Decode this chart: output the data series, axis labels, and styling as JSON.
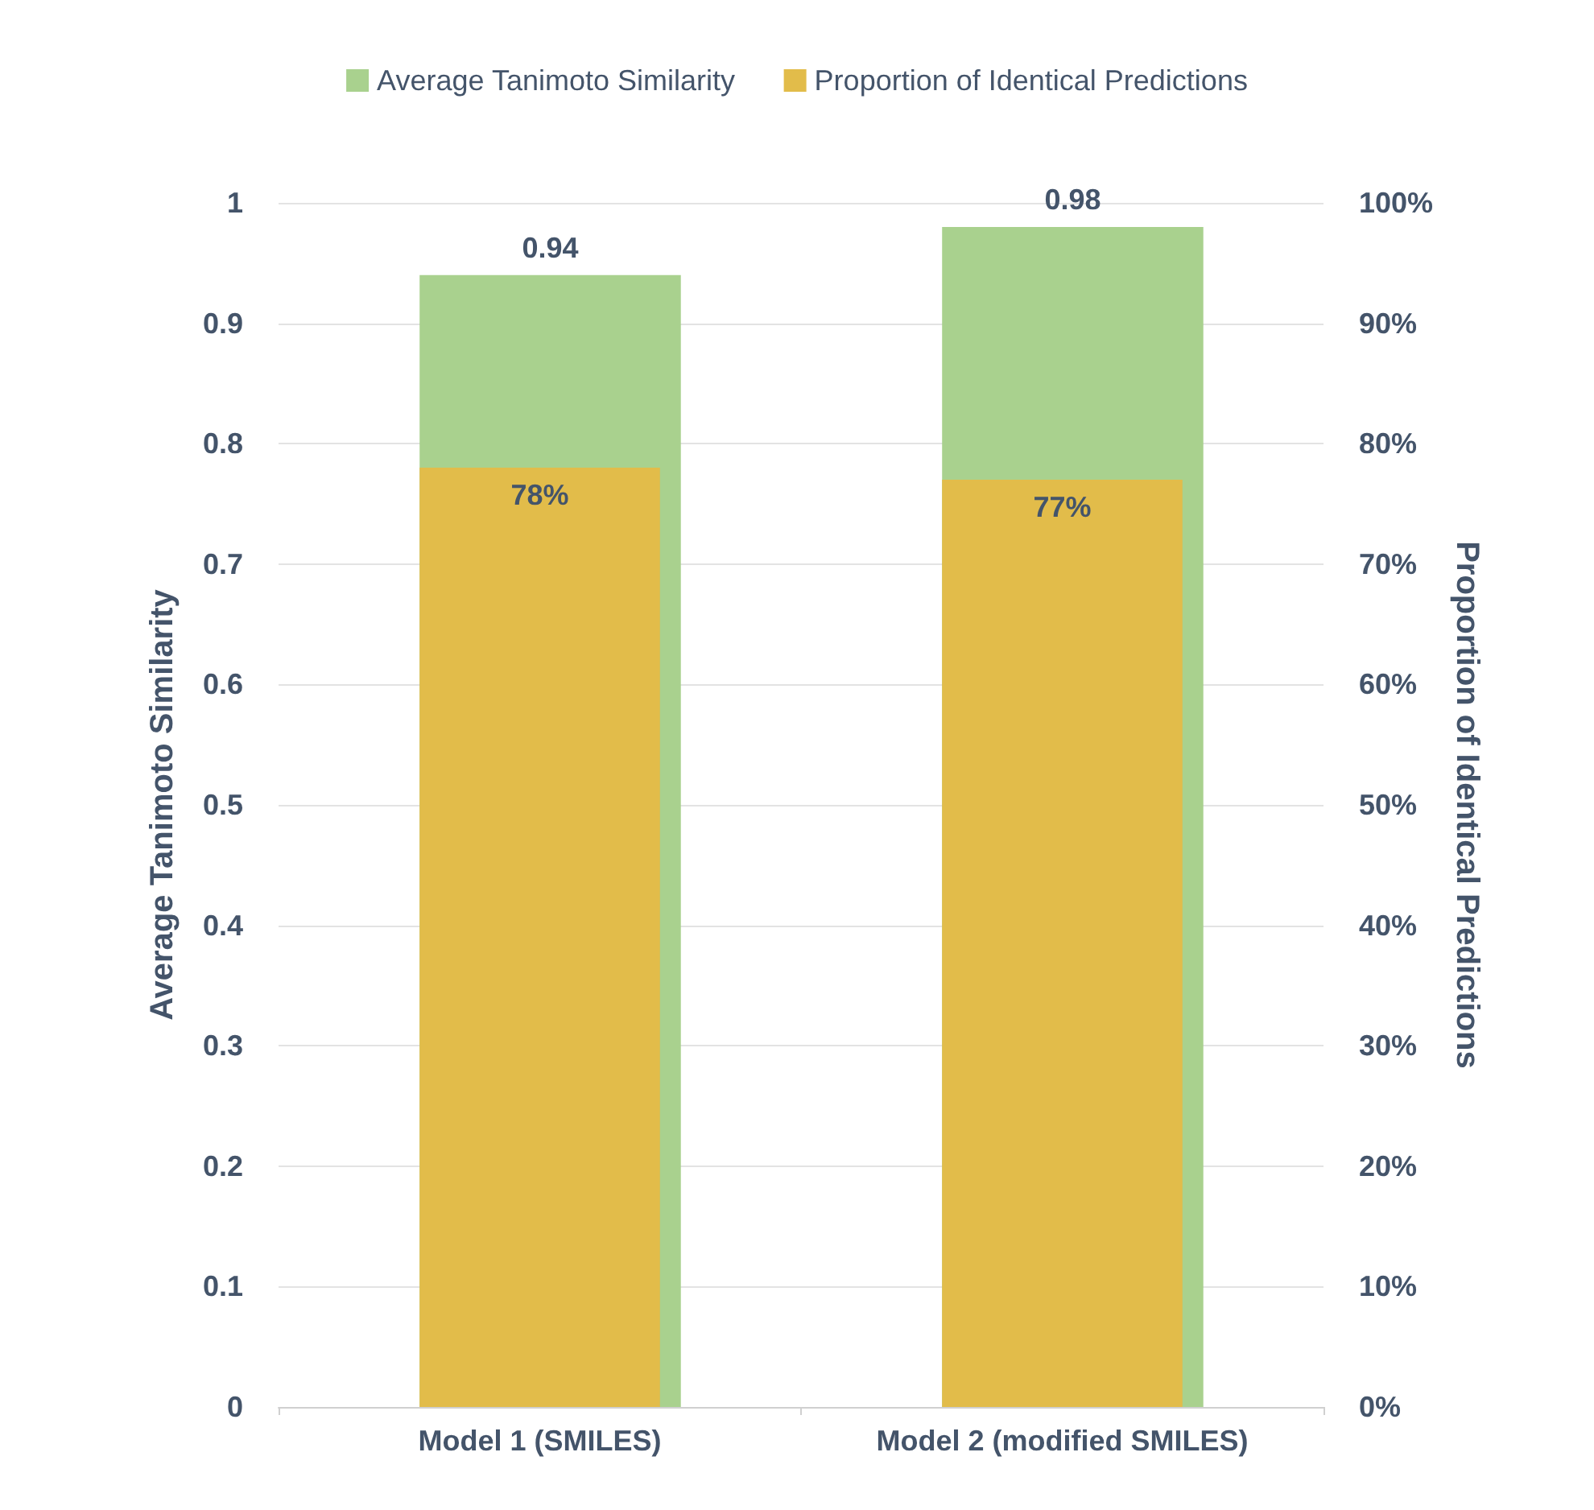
{
  "chart_data": {
    "type": "bar",
    "categories": [
      "Model 1 (SMILES)",
      "Model 2 (modified SMILES)"
    ],
    "ylabel": "Average Tanimoto Similarity",
    "y2label": "Proportion of Identical Predictions",
    "series": [
      {
        "name": "Average Tanimoto Similarity",
        "color": "#a9d18e",
        "values": [
          0.94,
          0.98
        ],
        "value_labels": [
          "0.94",
          "0.98"
        ]
      },
      {
        "name": "Proportion of Identical Predictions",
        "color": "#e2bc4a",
        "axis": "y2",
        "values": [
          78,
          77
        ],
        "value_labels": [
          "78%",
          "77%"
        ]
      }
    ],
    "ylim": [
      0,
      1
    ],
    "yticks": [
      0,
      0.1,
      0.2,
      0.3,
      0.4,
      0.5,
      0.6,
      0.7,
      0.8,
      0.9,
      1
    ],
    "y2lim": [
      0,
      100
    ],
    "y2ticks": [
      {
        "value": 0,
        "label": "0%"
      },
      {
        "value": 10,
        "label": "10%"
      },
      {
        "value": 20,
        "label": "20%"
      },
      {
        "value": 30,
        "label": "30%"
      },
      {
        "value": 40,
        "label": "40%"
      },
      {
        "value": 50,
        "label": "50%"
      },
      {
        "value": 60,
        "label": "60%"
      },
      {
        "value": 70,
        "label": "70%"
      },
      {
        "value": 80,
        "label": "80%"
      },
      {
        "value": 90,
        "label": "90%"
      },
      {
        "value": 100,
        "label": "100%"
      }
    ],
    "grid": "y",
    "legend": "top"
  }
}
